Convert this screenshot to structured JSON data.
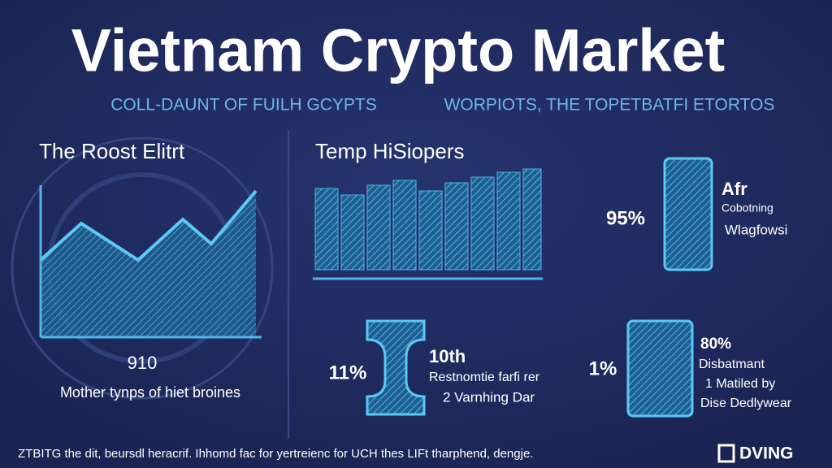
{
  "header": {
    "title": "Vietnam Crypto Market",
    "subtitle_left": "COLL-DAUNT OF FUILH GCYPTS",
    "subtitle_right": "WORPIOTS, THE TOPETBATFI ETORTOS"
  },
  "left_panel": {
    "title": "The Roost Elitrt",
    "center_label": "910",
    "caption": "Mother tynps of hiet broines"
  },
  "middle_panel": {
    "title": "Temp HiSiopers"
  },
  "stats": [
    {
      "value": "95%",
      "title": "Afr",
      "lines": [
        "Cobotning",
        "Wlagfowsi"
      ]
    },
    {
      "value": "11%",
      "title": "10th",
      "lines": [
        "Restnomtie farfi rer",
        "2 Varnhing Dar"
      ]
    },
    {
      "value": "1%",
      "title": "80%",
      "lines": [
        "Disbatmant",
        "1 Matiled by",
        "Dise Dedlywear"
      ]
    }
  ],
  "footer": {
    "text": "ZTBITG the dit, beursdl heracrif. Ihhomd fac for yertreienc for UCH thes LIFt tharphend, dengje.",
    "logo": "DVING"
  }
}
